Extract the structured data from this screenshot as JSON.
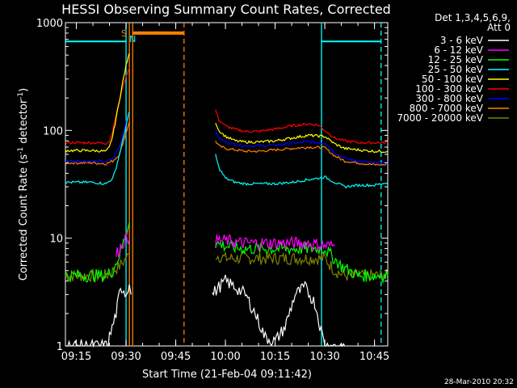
{
  "chart_data": {
    "type": "line",
    "title": "HESSI Observing Summary Count Rates, Corrected",
    "xlabel": "Start Time (21-Feb-04 09:11:42)",
    "ylabel": "Corrected Count Rate (s",
    "ylabel_sup1": "-1",
    "ylabel_mid": " detector",
    "ylabel_sup2": "-1",
    "ylabel_end": ")",
    "yscale": "log",
    "ylim": [
      1,
      1000
    ],
    "y_ticks": [
      1,
      10,
      100,
      1000
    ],
    "y_tick_labels": [
      "1",
      "10",
      "100",
      "1000"
    ],
    "xlim": [
      "09:11:42",
      "10:49:00"
    ],
    "x_ticks": [
      "09:15",
      "09:30",
      "09:45",
      "10:00",
      "10:15",
      "10:30",
      "10:45"
    ],
    "grid": false,
    "legend": {
      "placement": "outside-right",
      "header": [
        "Det 1,3,4,5,6,9,",
        "Att 0"
      ]
    },
    "series": [
      {
        "name": "3 - 6 keV",
        "color": "#ffffff",
        "segments": [
          {
            "x": [
              "09:11:42",
              "09:22",
              "09:24",
              "09:25",
              "09:27",
              "09:28",
              "09:29",
              "09:30",
              "09:31",
              "09:31:30"
            ],
            "y": [
              1,
              1,
              1,
              1.2,
              2,
              3,
              3.5,
              3,
              4,
              3
            ]
          },
          {
            "x": [
              "09:56",
              "09:58",
              "10:00",
              "10:03",
              "10:06",
              "10:09",
              "10:12",
              "10:15",
              "10:18",
              "10:21",
              "10:24",
              "10:27",
              "10:30",
              "10:33",
              "10:36"
            ],
            "y": [
              3,
              3.5,
              4,
              3.5,
              3,
              2,
              1.2,
              1.1,
              1.5,
              3,
              3.5,
              2.5,
              1,
              1,
              1
            ]
          }
        ]
      },
      {
        "name": "6 - 12 keV",
        "color": "#ff00ff",
        "segments": [
          {
            "x": [
              "09:27",
              "09:28",
              "09:29",
              "09:30",
              "09:31"
            ],
            "y": [
              7,
              8,
              9,
              10,
              10
            ]
          },
          {
            "x": [
              "09:57",
              "10:00",
              "10:05",
              "10:10",
              "10:15",
              "10:20",
              "10:25",
              "10:30",
              "10:33"
            ],
            "y": [
              9.5,
              9.5,
              9,
              9,
              9,
              9,
              9,
              8.5,
              8.5
            ]
          }
        ]
      },
      {
        "name": "12 - 25 keV",
        "color": "#00ff00",
        "segments": [
          {
            "x": [
              "09:11:42",
              "09:18",
              "09:24",
              "09:26",
              "09:28",
              "09:30",
              "09:31"
            ],
            "y": [
              4.5,
              4.5,
              4.5,
              5,
              7,
              11,
              14
            ]
          },
          {
            "x": [
              "09:57",
              "10:00",
              "10:05",
              "10:10",
              "10:15",
              "10:20",
              "10:25",
              "10:30",
              "10:35",
              "10:40",
              "10:49"
            ],
            "y": [
              9,
              8.5,
              8,
              8,
              8,
              8,
              8,
              8,
              5.5,
              4.5,
              4.5
            ]
          }
        ]
      },
      {
        "name": "25 - 50 keV",
        "color": "#00ffff",
        "segments": [
          {
            "x": [
              "09:11:42",
              "09:15",
              "09:20",
              "09:24",
              "09:26",
              "09:27",
              "09:28",
              "09:29",
              "09:30",
              "09:31"
            ],
            "y": [
              33,
              33,
              33,
              32,
              36,
              45,
              60,
              80,
              110,
              150
            ]
          },
          {
            "x": [
              "09:57",
              "09:58",
              "10:00",
              "10:03",
              "10:06",
              "10:10",
              "10:15",
              "10:20",
              "10:25",
              "10:28",
              "10:30",
              "10:33",
              "10:36",
              "10:40",
              "10:45",
              "10:49"
            ],
            "y": [
              60,
              45,
              36,
              33,
              32,
              32,
              32,
              33,
              35,
              36,
              37,
              33,
              30,
              31,
              31,
              33
            ]
          }
        ]
      },
      {
        "name": "50 - 100 keV",
        "color": "#ffff00",
        "segments": [
          {
            "x": [
              "09:11:42",
              "09:15",
              "09:20",
              "09:24",
              "09:25",
              "09:26",
              "09:27",
              "09:28",
              "09:29",
              "09:30",
              "09:31"
            ],
            "y": [
              65,
              65,
              65,
              64,
              70,
              90,
              130,
              190,
              280,
              400,
              520
            ]
          },
          {
            "x": [
              "09:57",
              "09:58",
              "10:00",
              "10:03",
              "10:06",
              "10:10",
              "10:15",
              "10:20",
              "10:25",
              "10:30",
              "10:33",
              "10:36",
              "10:40",
              "10:45",
              "10:49"
            ],
            "y": [
              120,
              100,
              88,
              80,
              78,
              78,
              80,
              85,
              90,
              88,
              75,
              68,
              66,
              64,
              64
            ]
          }
        ]
      },
      {
        "name": "100 - 300 keV",
        "color": "#ff0000",
        "segments": [
          {
            "x": [
              "09:11:42",
              "09:15",
              "09:20",
              "09:24",
              "09:25",
              "09:26",
              "09:27",
              "09:28",
              "09:29",
              "09:30",
              "09:31"
            ],
            "y": [
              77,
              77,
              77,
              76,
              80,
              100,
              140,
              190,
              250,
              320,
              380
            ]
          },
          {
            "x": [
              "09:57",
              "09:58",
              "10:00",
              "10:03",
              "10:06",
              "10:10",
              "10:15",
              "10:20",
              "10:25",
              "10:28",
              "10:30",
              "10:33",
              "10:36",
              "10:40",
              "10:45",
              "10:49"
            ],
            "y": [
              155,
              125,
              110,
              102,
              98,
              98,
              103,
              110,
              115,
              112,
              100,
              85,
              80,
              77,
              77,
              77
            ]
          }
        ]
      },
      {
        "name": "300 - 800 keV",
        "color": "#0000ff",
        "segments": [
          {
            "x": [
              "09:11:42",
              "09:15",
              "09:20",
              "09:24",
              "09:26",
              "09:28",
              "09:29",
              "09:30",
              "09:31"
            ],
            "y": [
              52,
              52,
              52,
              51,
              55,
              70,
              90,
              120,
              150
            ]
          },
          {
            "x": [
              "09:57",
              "09:58",
              "10:00",
              "10:03",
              "10:06",
              "10:10",
              "10:15",
              "10:20",
              "10:25",
              "10:30",
              "10:33",
              "10:36",
              "10:40",
              "10:45",
              "10:49"
            ],
            "y": [
              100,
              85,
              78,
              74,
              72,
              72,
              73,
              76,
              78,
              77,
              62,
              55,
              52,
              50,
              50
            ]
          }
        ]
      },
      {
        "name": "800 - 7000 keV",
        "color": "#ff8000",
        "segments": [
          {
            "x": [
              "09:11:42",
              "09:15",
              "09:20",
              "09:24",
              "09:26",
              "09:28",
              "09:29",
              "09:30",
              "09:31"
            ],
            "y": [
              50,
              50,
              50,
              49,
              52,
              60,
              75,
              95,
              120
            ]
          },
          {
            "x": [
              "09:57",
              "09:58",
              "10:00",
              "10:03",
              "10:06",
              "10:10",
              "10:15",
              "10:20",
              "10:25",
              "10:30",
              "10:33",
              "10:36",
              "10:40",
              "10:45",
              "10:49"
            ],
            "y": [
              80,
              72,
              68,
              66,
              64,
              64,
              66,
              68,
              70,
              69,
              58,
              52,
              50,
              48,
              48
            ]
          }
        ]
      },
      {
        "name": "7000 - 20000 keV",
        "color": "#808000",
        "segments": [
          {
            "x": [
              "09:11:42",
              "09:15",
              "09:20",
              "09:24",
              "09:26",
              "09:28",
              "09:30",
              "09:31"
            ],
            "y": [
              4.5,
              4.5,
              4.5,
              4.5,
              5,
              5.5,
              6.5,
              7
            ]
          },
          {
            "x": [
              "09:57",
              "10:00",
              "10:05",
              "10:10",
              "10:15",
              "10:20",
              "10:25",
              "10:30",
              "10:33",
              "10:36",
              "10:40",
              "10:45",
              "10:49"
            ],
            "y": [
              7,
              6.5,
              6.5,
              6.5,
              6.5,
              6.5,
              6.5,
              6.5,
              5,
              4.5,
              4.5,
              4.5,
              4.5
            ]
          }
        ]
      }
    ],
    "annotations": {
      "saa_label": "S",
      "night_label": "N",
      "attenuator_bar": {
        "from": "09:32",
        "to": "09:47:30",
        "y": 800,
        "color": "#ff8000"
      },
      "flag_markers": [
        {
          "x": "09:31:00",
          "color": "#ff8000",
          "style": "solid"
        },
        {
          "x": "09:32:00",
          "color": "#ff8000",
          "style": "solid"
        },
        {
          "x": "09:47:30",
          "color": "#ff8000",
          "style": "dashed"
        }
      ],
      "night_periods": [
        {
          "from": "09:11:42",
          "to": "09:30:00",
          "y": 670
        },
        {
          "from": "10:29:00",
          "to": "10:47:00",
          "y": 670
        }
      ],
      "night_bounds": [
        {
          "x": "09:30:00",
          "style": "solid"
        },
        {
          "x": "10:29:00",
          "style": "solid"
        },
        {
          "x": "10:47:00",
          "style": "dashed"
        }
      ],
      "night_color": "#00ffff"
    },
    "timestamp": "28-Mar-2010 20:32"
  }
}
